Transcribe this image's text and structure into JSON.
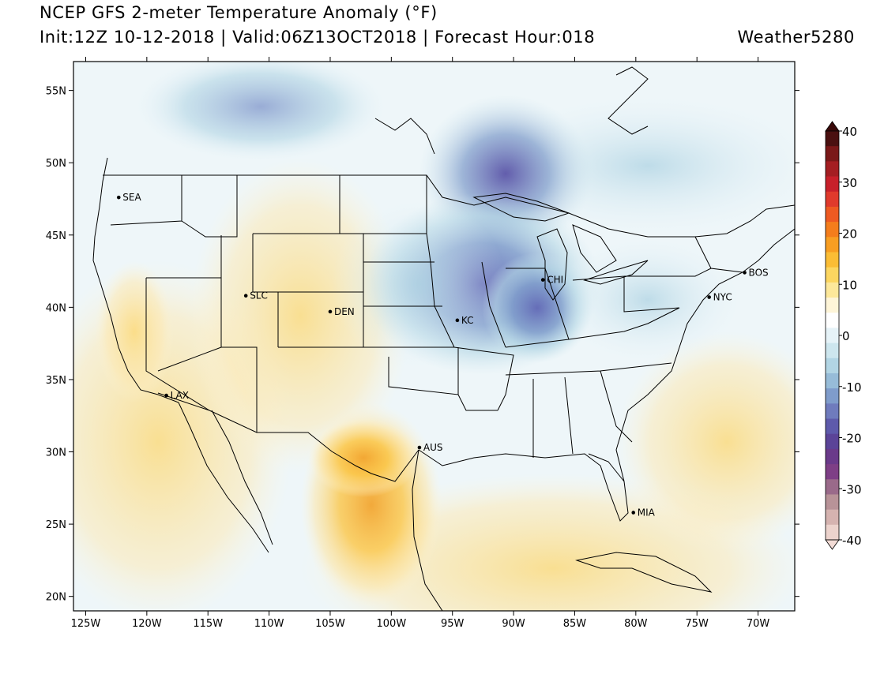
{
  "header": {
    "title": "NCEP GFS 2-meter Temperature Anomaly (°F)",
    "subtitle": "Init:12Z 10-12-2018 | Valid:06Z13OCT2018 | Forecast Hour:018",
    "brand": "Weather5280"
  },
  "axes": {
    "lat_labels": [
      "55N",
      "50N",
      "45N",
      "40N",
      "35N",
      "30N",
      "25N",
      "20N"
    ],
    "lat_values": [
      55,
      50,
      45,
      40,
      35,
      30,
      25,
      20
    ],
    "lon_labels": [
      "125W",
      "120W",
      "115W",
      "110W",
      "105W",
      "100W",
      "95W",
      "90W",
      "85W",
      "80W",
      "75W",
      "70W"
    ],
    "lon_values": [
      -125,
      -120,
      -115,
      -110,
      -105,
      -100,
      -95,
      -90,
      -85,
      -80,
      -75,
      -70
    ],
    "lat_range": [
      19,
      57
    ],
    "lon_range": [
      -126,
      -67
    ]
  },
  "cities": [
    {
      "label": "SEA",
      "lat": 47.6,
      "lon": -122.3
    },
    {
      "label": "SLC",
      "lat": 40.8,
      "lon": -111.9
    },
    {
      "label": "DEN",
      "lat": 39.7,
      "lon": -105.0
    },
    {
      "label": "KC",
      "lat": 39.1,
      "lon": -94.6
    },
    {
      "label": "CHI",
      "lat": 41.9,
      "lon": -87.6
    },
    {
      "label": "NYC",
      "lat": 40.7,
      "lon": -74.0
    },
    {
      "label": "BOS",
      "lat": 42.4,
      "lon": -71.1
    },
    {
      "label": "LAX",
      "lat": 33.9,
      "lon": -118.4
    },
    {
      "label": "AUS",
      "lat": 30.3,
      "lon": -97.7
    },
    {
      "label": "MIA",
      "lat": 25.8,
      "lon": -80.2
    }
  ],
  "colorbar": {
    "tick_labels": [
      "40",
      "30",
      "20",
      "10",
      "0",
      "-10",
      "-20",
      "-30",
      "-40"
    ],
    "tick_values": [
      40,
      30,
      20,
      10,
      0,
      -10,
      -20,
      -30,
      -40
    ],
    "colors": [
      "#4a1010",
      "#7a1818",
      "#a41e22",
      "#c8202a",
      "#e03a2c",
      "#ee5a22",
      "#f47d1c",
      "#f89e22",
      "#fbbd35",
      "#fcd660",
      "#fde89a",
      "#fef5d8",
      "#ffffff",
      "#e6f3f8",
      "#cde6ee",
      "#b2d5e4",
      "#97bcd8",
      "#7f9ccb",
      "#6f7bbd",
      "#5e5aab",
      "#5b4498",
      "#6a3a8a",
      "#7e3f86",
      "#9a6a8a",
      "#b89398",
      "#d5b3b0",
      "#ecd3cd"
    ],
    "max_color": "#3a0a0a",
    "min_color": "#f3dcd6"
  }
}
